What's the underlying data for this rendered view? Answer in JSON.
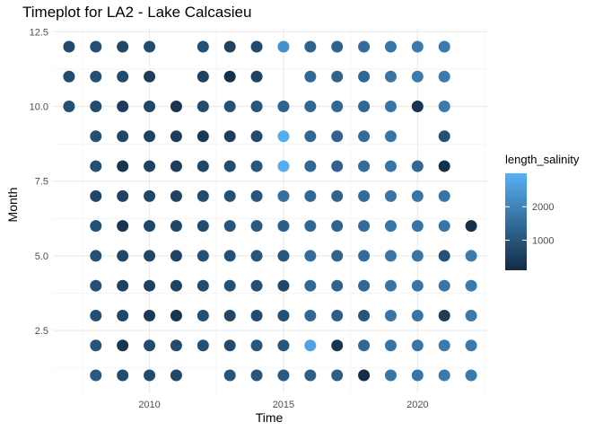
{
  "chart_data": {
    "type": "scatter",
    "title": "Timeplot for LA2 - Lake Calcasieu",
    "xlabel": "Time",
    "ylabel": "Month",
    "xlim": [
      2006.4,
      2022.6
    ],
    "ylim": [
      0.4,
      12.6
    ],
    "x_ticks": [
      2010,
      2015,
      2020
    ],
    "x_tick_labels": [
      "2010",
      "2015",
      "2020"
    ],
    "y_ticks": [
      2.5,
      5.0,
      7.5,
      10.0,
      12.5
    ],
    "y_tick_labels": [
      "2.5",
      "5.0",
      "7.5",
      "10.0",
      "12.5"
    ],
    "grid": true,
    "legend": {
      "title": "length_salinity",
      "position": "right",
      "range": [
        100,
        3000
      ],
      "ticks": [
        1000,
        2000
      ],
      "tick_labels": [
        "1000",
        "2000"
      ],
      "colors": [
        "#132B43",
        "#56B1F7"
      ]
    },
    "points": [
      {
        "x": 2007,
        "y": 12,
        "v": 800
      },
      {
        "x": 2007,
        "y": 11,
        "v": 800
      },
      {
        "x": 2007,
        "y": 10,
        "v": 900
      },
      {
        "x": 2008,
        "y": 12,
        "v": 900
      },
      {
        "x": 2008,
        "y": 11,
        "v": 900
      },
      {
        "x": 2008,
        "y": 10,
        "v": 800
      },
      {
        "x": 2008,
        "y": 9,
        "v": 900
      },
      {
        "x": 2008,
        "y": 8,
        "v": 900
      },
      {
        "x": 2008,
        "y": 7,
        "v": 700
      },
      {
        "x": 2008,
        "y": 6,
        "v": 900
      },
      {
        "x": 2008,
        "y": 5,
        "v": 900
      },
      {
        "x": 2008,
        "y": 4,
        "v": 900
      },
      {
        "x": 2008,
        "y": 3,
        "v": 900
      },
      {
        "x": 2008,
        "y": 2,
        "v": 1000
      },
      {
        "x": 2008,
        "y": 1,
        "v": 1100
      },
      {
        "x": 2009,
        "y": 12,
        "v": 700
      },
      {
        "x": 2009,
        "y": 11,
        "v": 800
      },
      {
        "x": 2009,
        "y": 10,
        "v": 500
      },
      {
        "x": 2009,
        "y": 9,
        "v": 700
      },
      {
        "x": 2009,
        "y": 8,
        "v": 300
      },
      {
        "x": 2009,
        "y": 7,
        "v": 600
      },
      {
        "x": 2009,
        "y": 6,
        "v": 300
      },
      {
        "x": 2009,
        "y": 5,
        "v": 700
      },
      {
        "x": 2009,
        "y": 4,
        "v": 600
      },
      {
        "x": 2009,
        "y": 3,
        "v": 700
      },
      {
        "x": 2009,
        "y": 2,
        "v": 300
      },
      {
        "x": 2009,
        "y": 1,
        "v": 800
      },
      {
        "x": 2010,
        "y": 12,
        "v": 800
      },
      {
        "x": 2010,
        "y": 11,
        "v": 500
      },
      {
        "x": 2010,
        "y": 10,
        "v": 700
      },
      {
        "x": 2010,
        "y": 9,
        "v": 600
      },
      {
        "x": 2010,
        "y": 8,
        "v": 600
      },
      {
        "x": 2010,
        "y": 7,
        "v": 700
      },
      {
        "x": 2010,
        "y": 6,
        "v": 700
      },
      {
        "x": 2010,
        "y": 5,
        "v": 700
      },
      {
        "x": 2010,
        "y": 4,
        "v": 600
      },
      {
        "x": 2010,
        "y": 3,
        "v": 400
      },
      {
        "x": 2010,
        "y": 2,
        "v": 800
      },
      {
        "x": 2010,
        "y": 1,
        "v": 800
      },
      {
        "x": 2011,
        "y": 10,
        "v": 300
      },
      {
        "x": 2011,
        "y": 9,
        "v": 500
      },
      {
        "x": 2011,
        "y": 8,
        "v": 500
      },
      {
        "x": 2011,
        "y": 7,
        "v": 600
      },
      {
        "x": 2011,
        "y": 6,
        "v": 700
      },
      {
        "x": 2011,
        "y": 5,
        "v": 600
      },
      {
        "x": 2011,
        "y": 4,
        "v": 600
      },
      {
        "x": 2011,
        "y": 3,
        "v": 300
      },
      {
        "x": 2011,
        "y": 2,
        "v": 800
      },
      {
        "x": 2011,
        "y": 1,
        "v": 700
      },
      {
        "x": 2012,
        "y": 12,
        "v": 900
      },
      {
        "x": 2012,
        "y": 11,
        "v": 600
      },
      {
        "x": 2012,
        "y": 10,
        "v": 800
      },
      {
        "x": 2012,
        "y": 9,
        "v": 400
      },
      {
        "x": 2012,
        "y": 8,
        "v": 700
      },
      {
        "x": 2012,
        "y": 7,
        "v": 800
      },
      {
        "x": 2012,
        "y": 6,
        "v": 800
      },
      {
        "x": 2012,
        "y": 5,
        "v": 900
      },
      {
        "x": 2012,
        "y": 4,
        "v": 800
      },
      {
        "x": 2012,
        "y": 3,
        "v": 900
      },
      {
        "x": 2012,
        "y": 2,
        "v": 900
      },
      {
        "x": 2013,
        "y": 12,
        "v": 600
      },
      {
        "x": 2013,
        "y": 11,
        "v": 200
      },
      {
        "x": 2013,
        "y": 10,
        "v": 900
      },
      {
        "x": 2013,
        "y": 9,
        "v": 500
      },
      {
        "x": 2013,
        "y": 8,
        "v": 800
      },
      {
        "x": 2013,
        "y": 7,
        "v": 900
      },
      {
        "x": 2013,
        "y": 6,
        "v": 1000
      },
      {
        "x": 2013,
        "y": 5,
        "v": 900
      },
      {
        "x": 2013,
        "y": 4,
        "v": 900
      },
      {
        "x": 2013,
        "y": 3,
        "v": 700
      },
      {
        "x": 2013,
        "y": 2,
        "v": 800
      },
      {
        "x": 2013,
        "y": 1,
        "v": 1000
      },
      {
        "x": 2014,
        "y": 12,
        "v": 800
      },
      {
        "x": 2014,
        "y": 11,
        "v": 600
      },
      {
        "x": 2014,
        "y": 10,
        "v": 1000
      },
      {
        "x": 2014,
        "y": 9,
        "v": 800
      },
      {
        "x": 2014,
        "y": 8,
        "v": 1000
      },
      {
        "x": 2014,
        "y": 7,
        "v": 1000
      },
      {
        "x": 2014,
        "y": 6,
        "v": 1100
      },
      {
        "x": 2014,
        "y": 5,
        "v": 1000
      },
      {
        "x": 2014,
        "y": 4,
        "v": 900
      },
      {
        "x": 2014,
        "y": 3,
        "v": 800
      },
      {
        "x": 2014,
        "y": 2,
        "v": 1000
      },
      {
        "x": 2014,
        "y": 1,
        "v": 1000
      },
      {
        "x": 2015,
        "y": 12,
        "v": 2300
      },
      {
        "x": 2015,
        "y": 10,
        "v": 1300
      },
      {
        "x": 2015,
        "y": 9,
        "v": 2900
      },
      {
        "x": 2015,
        "y": 8,
        "v": 2900
      },
      {
        "x": 2015,
        "y": 7,
        "v": 1600
      },
      {
        "x": 2015,
        "y": 6,
        "v": 1200
      },
      {
        "x": 2015,
        "y": 5,
        "v": 1000
      },
      {
        "x": 2015,
        "y": 4,
        "v": 700
      },
      {
        "x": 2015,
        "y": 3,
        "v": 900
      },
      {
        "x": 2015,
        "y": 2,
        "v": 1000
      },
      {
        "x": 2015,
        "y": 1,
        "v": 1100
      },
      {
        "x": 2016,
        "y": 12,
        "v": 1300
      },
      {
        "x": 2016,
        "y": 11,
        "v": 1400
      },
      {
        "x": 2016,
        "y": 10,
        "v": 1400
      },
      {
        "x": 2016,
        "y": 9,
        "v": 1400
      },
      {
        "x": 2016,
        "y": 8,
        "v": 1400
      },
      {
        "x": 2016,
        "y": 7,
        "v": 1400
      },
      {
        "x": 2016,
        "y": 6,
        "v": 1400
      },
      {
        "x": 2016,
        "y": 5,
        "v": 1500
      },
      {
        "x": 2016,
        "y": 4,
        "v": 1400
      },
      {
        "x": 2016,
        "y": 3,
        "v": 1400
      },
      {
        "x": 2016,
        "y": 2,
        "v": 2700
      },
      {
        "x": 2016,
        "y": 1,
        "v": 1200
      },
      {
        "x": 2017,
        "y": 12,
        "v": 1300
      },
      {
        "x": 2017,
        "y": 11,
        "v": 1300
      },
      {
        "x": 2017,
        "y": 10,
        "v": 1400
      },
      {
        "x": 2017,
        "y": 9,
        "v": 1300
      },
      {
        "x": 2017,
        "y": 8,
        "v": 1300
      },
      {
        "x": 2017,
        "y": 7,
        "v": 1300
      },
      {
        "x": 2017,
        "y": 6,
        "v": 1300
      },
      {
        "x": 2017,
        "y": 5,
        "v": 1300
      },
      {
        "x": 2017,
        "y": 4,
        "v": 1300
      },
      {
        "x": 2017,
        "y": 3,
        "v": 1200
      },
      {
        "x": 2017,
        "y": 2,
        "v": 300
      },
      {
        "x": 2017,
        "y": 1,
        "v": 1200
      },
      {
        "x": 2018,
        "y": 12,
        "v": 1500
      },
      {
        "x": 2018,
        "y": 11,
        "v": 1400
      },
      {
        "x": 2018,
        "y": 10,
        "v": 1400
      },
      {
        "x": 2018,
        "y": 9,
        "v": 1500
      },
      {
        "x": 2018,
        "y": 8,
        "v": 1500
      },
      {
        "x": 2018,
        "y": 7,
        "v": 1500
      },
      {
        "x": 2018,
        "y": 6,
        "v": 1500
      },
      {
        "x": 2018,
        "y": 5,
        "v": 1500
      },
      {
        "x": 2018,
        "y": 4,
        "v": 1400
      },
      {
        "x": 2018,
        "y": 3,
        "v": 1000
      },
      {
        "x": 2018,
        "y": 2,
        "v": 1400
      },
      {
        "x": 2018,
        "y": 1,
        "v": 150
      },
      {
        "x": 2019,
        "y": 12,
        "v": 1700
      },
      {
        "x": 2019,
        "y": 11,
        "v": 1700
      },
      {
        "x": 2019,
        "y": 10,
        "v": 1700
      },
      {
        "x": 2019,
        "y": 9,
        "v": 1700
      },
      {
        "x": 2019,
        "y": 8,
        "v": 1700
      },
      {
        "x": 2019,
        "y": 7,
        "v": 1700
      },
      {
        "x": 2019,
        "y": 6,
        "v": 1700
      },
      {
        "x": 2019,
        "y": 5,
        "v": 1700
      },
      {
        "x": 2019,
        "y": 4,
        "v": 1700
      },
      {
        "x": 2019,
        "y": 3,
        "v": 1700
      },
      {
        "x": 2019,
        "y": 2,
        "v": 1700
      },
      {
        "x": 2019,
        "y": 1,
        "v": 1700
      },
      {
        "x": 2020,
        "y": 12,
        "v": 1800
      },
      {
        "x": 2020,
        "y": 11,
        "v": 1800
      },
      {
        "x": 2020,
        "y": 10,
        "v": 300
      },
      {
        "x": 2020,
        "y": 8,
        "v": 1400
      },
      {
        "x": 2020,
        "y": 7,
        "v": 1700
      },
      {
        "x": 2020,
        "y": 6,
        "v": 1700
      },
      {
        "x": 2020,
        "y": 5,
        "v": 1700
      },
      {
        "x": 2020,
        "y": 4,
        "v": 1700
      },
      {
        "x": 2020,
        "y": 3,
        "v": 1700
      },
      {
        "x": 2020,
        "y": 2,
        "v": 1700
      },
      {
        "x": 2020,
        "y": 1,
        "v": 1700
      },
      {
        "x": 2021,
        "y": 12,
        "v": 1800
      },
      {
        "x": 2021,
        "y": 11,
        "v": 1800
      },
      {
        "x": 2021,
        "y": 10,
        "v": 1800
      },
      {
        "x": 2021,
        "y": 9,
        "v": 900
      },
      {
        "x": 2021,
        "y": 8,
        "v": 200
      },
      {
        "x": 2021,
        "y": 7,
        "v": 1700
      },
      {
        "x": 2021,
        "y": 6,
        "v": 1700
      },
      {
        "x": 2021,
        "y": 5,
        "v": 900
      },
      {
        "x": 2021,
        "y": 4,
        "v": 1700
      },
      {
        "x": 2021,
        "y": 3,
        "v": 500
      },
      {
        "x": 2021,
        "y": 2,
        "v": 1800
      },
      {
        "x": 2021,
        "y": 1,
        "v": 1800
      },
      {
        "x": 2022,
        "y": 6,
        "v": 200
      },
      {
        "x": 2022,
        "y": 5,
        "v": 1800
      },
      {
        "x": 2022,
        "y": 4,
        "v": 1800
      },
      {
        "x": 2022,
        "y": 3,
        "v": 1800
      },
      {
        "x": 2022,
        "y": 2,
        "v": 1800
      },
      {
        "x": 2022,
        "y": 1,
        "v": 1800
      }
    ]
  }
}
